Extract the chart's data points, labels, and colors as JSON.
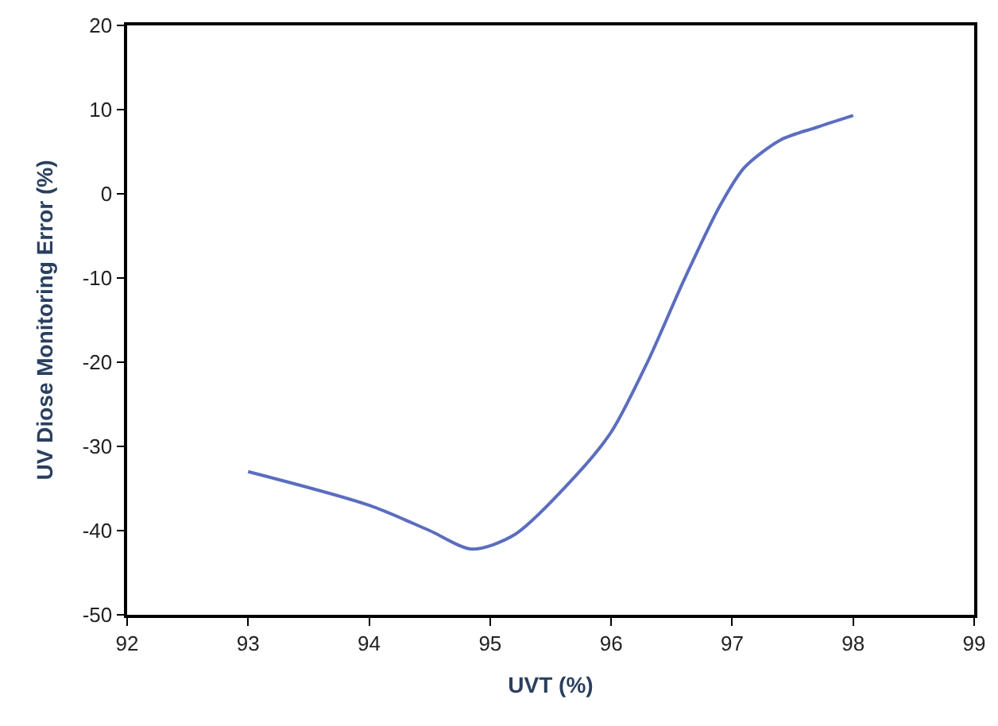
{
  "chart_data": {
    "type": "line",
    "xlabel": "UVT (%)",
    "ylabel": "UV Diose Monitoring Error (%)",
    "x": [
      93,
      94,
      94.5,
      94.85,
      95.2,
      95.7,
      96,
      96.3,
      96.6,
      96.9,
      97.1,
      97.4,
      97.7,
      98
    ],
    "series": [
      {
        "color": "#5b6dbf",
        "values": [
          -33,
          -37,
          -40,
          -42.2,
          -40.5,
          -33.6,
          -28.3,
          -20,
          -10.3,
          -1.4,
          3.1,
          6.4,
          7.9,
          9.3
        ]
      }
    ],
    "xlim": [
      92,
      99
    ],
    "xticks": [
      92,
      93,
      94,
      95,
      96,
      97,
      98,
      99
    ],
    "ylim": [
      -50,
      20
    ],
    "yticks": [
      -50,
      -40,
      -30,
      -20,
      -10,
      0,
      10,
      20
    ],
    "legend": false,
    "marker": "none",
    "line_style": "solid"
  }
}
